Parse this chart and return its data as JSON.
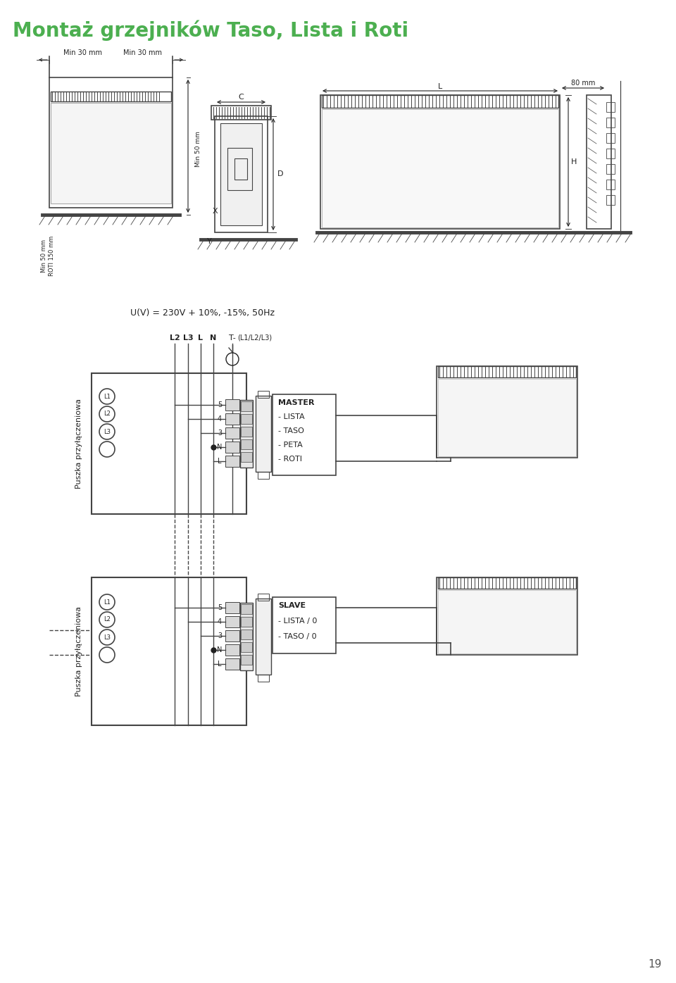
{
  "title": "Montaż grzejników Taso, Lista i Roti",
  "title_color": "#4CAF50",
  "title_fontsize": 20,
  "bg_color": "#ffffff",
  "line_color": "#444444",
  "text_color": "#222222",
  "voltage_text": "U(V) = 230V + 10%, -15%, 50Hz",
  "master_box_labels": [
    "MASTER",
    "- LISTA",
    "- TASO",
    "- PETA",
    "- ROTI"
  ],
  "slave_box_labels": [
    "SLAVE",
    "- LISTA / 0",
    "- TASO / 0"
  ],
  "puszka_text": "Puszka przyłączeniowa",
  "page_number": "19",
  "dim_C": "C",
  "dim_D": "D",
  "dim_X": "X",
  "dim_Y": "Y",
  "dim_L": "L",
  "dim_H": "H",
  "dim_80mm": "80 mm",
  "dim_min30_1": "Min 30 mm",
  "dim_min30_2": "Min 30 mm",
  "dim_min50": "Min 50 mm",
  "dim_min50_roti": "Min 50 mm\nROTI 150 mm"
}
